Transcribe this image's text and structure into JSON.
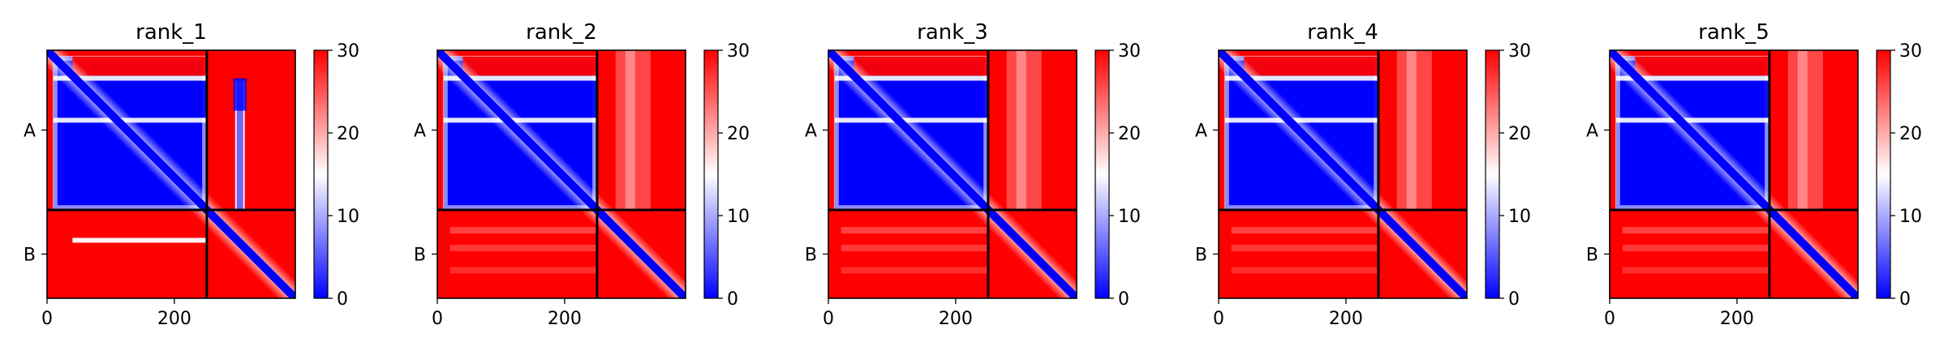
{
  "figure": {
    "colormap": "bwr",
    "colormap_colors": [
      "#0000ff",
      "#ffffff",
      "#ff0000"
    ],
    "frame_color": "#000000"
  },
  "chart_data": [
    {
      "type": "heatmap",
      "title": "rank_1",
      "xlabel": "",
      "ylabel": "",
      "x_ticks": [
        "0",
        "200"
      ],
      "y_ticks": [
        "A",
        "B"
      ],
      "colorbar_ticks": [
        "0",
        "10",
        "20",
        "30"
      ],
      "vmin": 0,
      "vmax": 30,
      "matrix_size": 390,
      "chain_boundary": 251,
      "chains": [
        {
          "name": "A",
          "start": 0,
          "end": 251
        },
        {
          "name": "B",
          "start": 251,
          "end": 390
        }
      ],
      "off_diagonal_low_error": true,
      "off_diagonal_band_residue": 303
    },
    {
      "type": "heatmap",
      "title": "rank_2",
      "xlabel": "",
      "ylabel": "",
      "x_ticks": [
        "0",
        "200"
      ],
      "y_ticks": [
        "A",
        "B"
      ],
      "colorbar_ticks": [
        "0",
        "10",
        "20",
        "30"
      ],
      "vmin": 0,
      "vmax": 30,
      "matrix_size": 390,
      "chain_boundary": 251,
      "chains": [
        {
          "name": "A",
          "start": 0,
          "end": 251
        },
        {
          "name": "B",
          "start": 251,
          "end": 390
        }
      ],
      "off_diagonal_low_error": false,
      "off_diagonal_band_residue": 303
    },
    {
      "type": "heatmap",
      "title": "rank_3",
      "xlabel": "",
      "ylabel": "",
      "x_ticks": [
        "0",
        "200"
      ],
      "y_ticks": [
        "A",
        "B"
      ],
      "colorbar_ticks": [
        "0",
        "10",
        "20",
        "30"
      ],
      "vmin": 0,
      "vmax": 30,
      "matrix_size": 390,
      "chain_boundary": 251,
      "chains": [
        {
          "name": "A",
          "start": 0,
          "end": 251
        },
        {
          "name": "B",
          "start": 251,
          "end": 390
        }
      ],
      "off_diagonal_low_error": false,
      "off_diagonal_band_residue": 303
    },
    {
      "type": "heatmap",
      "title": "rank_4",
      "xlabel": "",
      "ylabel": "",
      "x_ticks": [
        "0",
        "200"
      ],
      "y_ticks": [
        "A",
        "B"
      ],
      "colorbar_ticks": [
        "0",
        "10",
        "20",
        "30"
      ],
      "vmin": 0,
      "vmax": 30,
      "matrix_size": 390,
      "chain_boundary": 251,
      "chains": [
        {
          "name": "A",
          "start": 0,
          "end": 251
        },
        {
          "name": "B",
          "start": 251,
          "end": 390
        }
      ],
      "off_diagonal_low_error": false,
      "off_diagonal_band_residue": 303
    },
    {
      "type": "heatmap",
      "title": "rank_5",
      "xlabel": "",
      "ylabel": "",
      "x_ticks": [
        "0",
        "200"
      ],
      "y_ticks": [
        "A",
        "B"
      ],
      "colorbar_ticks": [
        "0",
        "10",
        "20",
        "30"
      ],
      "vmin": 0,
      "vmax": 30,
      "matrix_size": 390,
      "chain_boundary": 251,
      "chains": [
        {
          "name": "A",
          "start": 0,
          "end": 251
        },
        {
          "name": "B",
          "start": 251,
          "end": 390
        }
      ],
      "off_diagonal_low_error": false,
      "off_diagonal_band_residue": 303
    }
  ]
}
